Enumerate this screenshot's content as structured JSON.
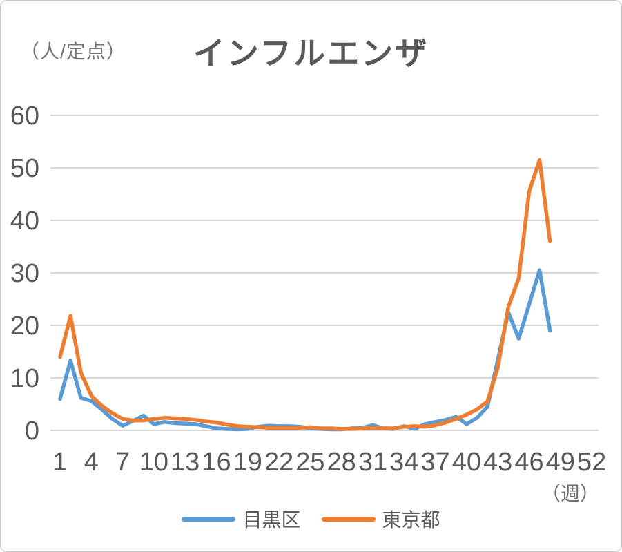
{
  "chart_data": {
    "type": "line",
    "title": "インフルエンザ",
    "y_unit_label": "（人/定点）",
    "x_unit_label": "（週）",
    "xlabel": "",
    "ylabel": "",
    "ylim": [
      0,
      60
    ],
    "xlim": [
      1,
      52
    ],
    "grid": "horizontal",
    "legend_position": "bottom",
    "yticks": [
      0,
      10,
      20,
      30,
      40,
      50,
      60
    ],
    "xticks": [
      1,
      4,
      7,
      10,
      13,
      16,
      19,
      22,
      25,
      28,
      31,
      34,
      37,
      40,
      43,
      46,
      49,
      52
    ],
    "x": [
      1,
      2,
      3,
      4,
      5,
      6,
      7,
      8,
      9,
      10,
      11,
      12,
      13,
      14,
      15,
      16,
      17,
      18,
      19,
      20,
      21,
      22,
      23,
      24,
      25,
      26,
      27,
      28,
      29,
      30,
      31,
      32,
      33,
      34,
      35,
      36,
      37,
      38,
      39,
      40,
      41,
      42,
      43,
      44,
      45,
      46,
      47,
      48
    ],
    "series": [
      {
        "id": "meguro",
        "name": "目黒区",
        "color": "#5B9BD5",
        "values": [
          6.0,
          13.3,
          6.2,
          5.6,
          4.0,
          2.2,
          0.9,
          1.8,
          2.8,
          1.2,
          1.6,
          1.4,
          1.3,
          1.2,
          0.8,
          0.4,
          0.3,
          0.2,
          0.3,
          0.7,
          0.9,
          0.8,
          0.8,
          0.7,
          0.4,
          0.3,
          0.2,
          0.2,
          0.4,
          0.5,
          1.0,
          0.4,
          0.3,
          0.8,
          0.3,
          1.2,
          1.6,
          2.0,
          2.6,
          1.2,
          2.4,
          4.5,
          13.5,
          22.5,
          17.5,
          24.0,
          30.5,
          19.0
        ]
      },
      {
        "id": "tokyo",
        "name": "東京都",
        "color": "#ED7D31",
        "values": [
          14.0,
          21.8,
          11.0,
          6.6,
          4.7,
          3.3,
          2.2,
          1.9,
          1.9,
          2.2,
          2.4,
          2.3,
          2.2,
          2.0,
          1.7,
          1.5,
          1.1,
          0.8,
          0.7,
          0.6,
          0.5,
          0.5,
          0.5,
          0.5,
          0.6,
          0.4,
          0.4,
          0.3,
          0.3,
          0.4,
          0.5,
          0.4,
          0.4,
          0.7,
          0.8,
          0.7,
          1.0,
          1.5,
          2.2,
          3.0,
          4.0,
          5.5,
          12.0,
          23.5,
          29.0,
          45.5,
          51.5,
          36.0
        ]
      }
    ],
    "colors": {
      "gridline": "#D9D9D9",
      "tick_text": "#595959",
      "title_text": "#595959",
      "unit_text": "#757575",
      "card_border": "#C6C6C6"
    }
  }
}
